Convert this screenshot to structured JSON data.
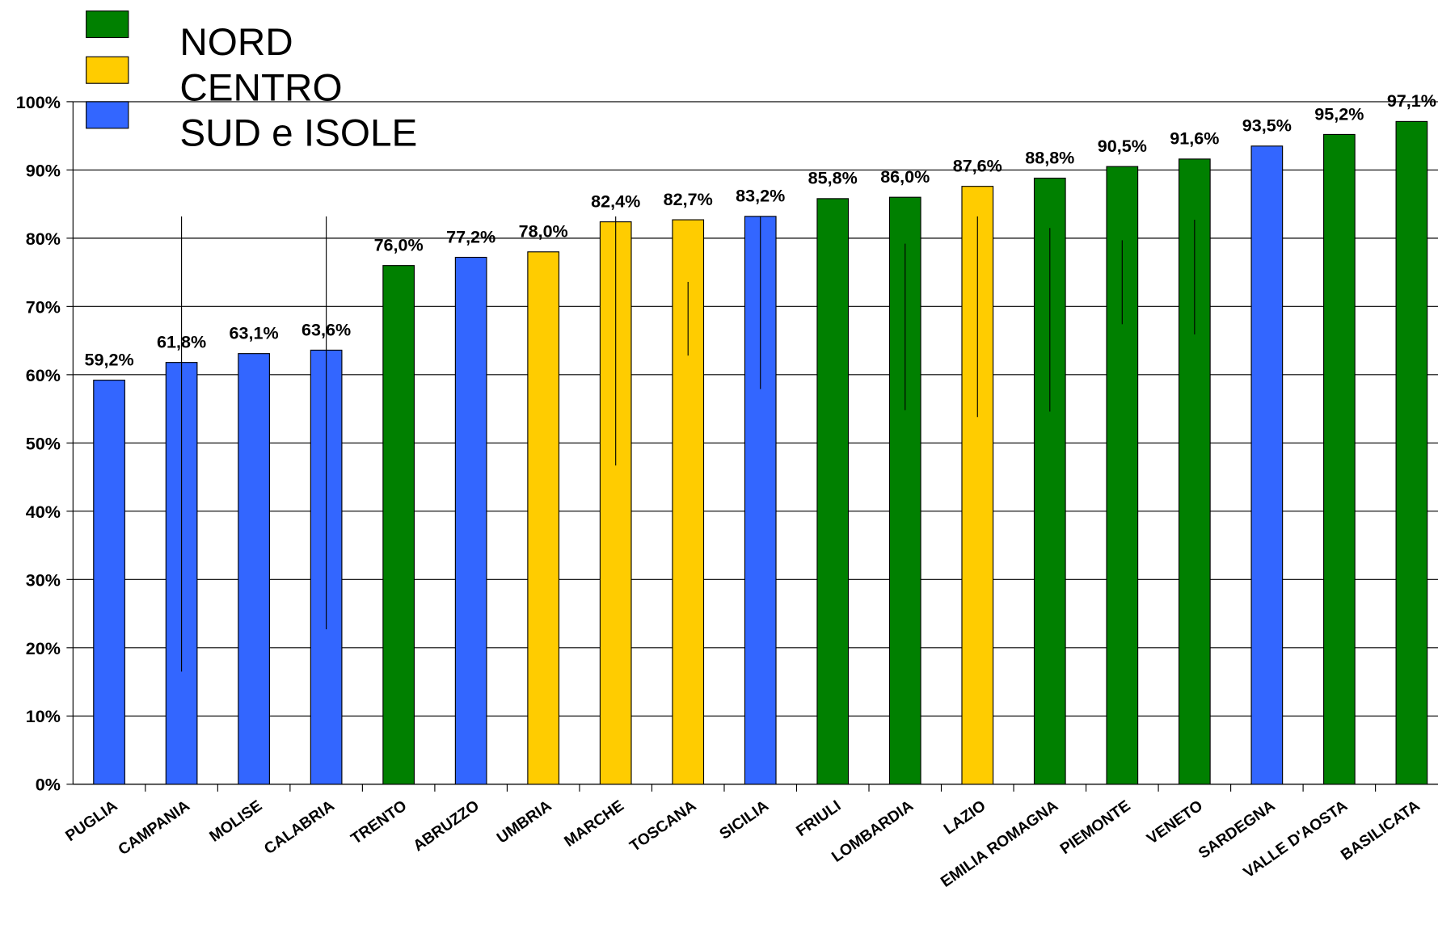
{
  "chart_data": {
    "type": "bar",
    "categories": [
      "PUGLIA",
      "CAMPANIA",
      "MOLISE",
      "CALABRIA",
      "TRENTO",
      "ABRUZZO",
      "UMBRIA",
      "MARCHE",
      "TOSCANA",
      "SICILIA",
      "FRIULI",
      "LOMBARDIA",
      "LAZIO",
      "EMILIA ROMAGNA",
      "PIEMONTE",
      "VENETO",
      "SARDEGNA",
      "VALLE D'AOSTA",
      "BASILICATA"
    ],
    "series": [
      {
        "name": "NORD",
        "color": "#008000",
        "values": [
          null,
          null,
          null,
          null,
          76.0,
          null,
          null,
          null,
          null,
          null,
          85.8,
          86.0,
          null,
          88.8,
          90.5,
          91.6,
          null,
          95.2,
          97.1
        ],
        "value_labels": [
          null,
          null,
          null,
          null,
          "76,0%",
          null,
          null,
          null,
          null,
          null,
          "85,8%",
          "86,0%",
          null,
          "88,8%",
          "90,5%",
          "91,6%",
          null,
          "95,2%",
          "97,1%"
        ]
      },
      {
        "name": "CENTRO",
        "color": "#ffcc00",
        "values": [
          null,
          null,
          null,
          null,
          null,
          null,
          78.0,
          82.4,
          82.7,
          null,
          null,
          null,
          87.6,
          null,
          null,
          null,
          null,
          null,
          null
        ],
        "value_labels": [
          null,
          null,
          null,
          null,
          null,
          null,
          "78,0%",
          "82,4%",
          "82,7%",
          null,
          null,
          null,
          "87,6%",
          null,
          null,
          null,
          null,
          null,
          null
        ]
      },
      {
        "name": "SUD e ISOLE",
        "color": "#3366ff",
        "values": [
          59.2,
          61.8,
          63.1,
          63.6,
          null,
          77.2,
          null,
          null,
          null,
          83.2,
          null,
          null,
          null,
          null,
          null,
          null,
          93.5,
          null,
          null
        ],
        "value_labels": [
          "59,2%",
          "61,8%",
          "63,1%",
          "63,6%",
          null,
          "77,2%",
          null,
          null,
          null,
          "83,2%",
          null,
          null,
          null,
          null,
          null,
          null,
          "93,5%",
          null,
          null
        ]
      }
    ],
    "ranges": [
      null,
      [
        16.5,
        83.2
      ],
      null,
      [
        22.7,
        83.2
      ],
      null,
      null,
      null,
      [
        46.7,
        83.2
      ],
      [
        62.8,
        73.6
      ],
      [
        57.9,
        83.2
      ],
      null,
      [
        54.8,
        79.2
      ],
      [
        53.8,
        83.2
      ],
      [
        54.6,
        81.5
      ],
      [
        67.4,
        79.7
      ],
      [
        65.9,
        82.7
      ],
      null,
      null,
      null
    ],
    "ylim": [
      0,
      100
    ],
    "yticks": [
      {
        "value": 0,
        "label": "0%"
      },
      {
        "value": 10,
        "label": "10%"
      },
      {
        "value": 20,
        "label": "20%"
      },
      {
        "value": 30,
        "label": "30%"
      },
      {
        "value": 40,
        "label": "40%"
      },
      {
        "value": 50,
        "label": "50%"
      },
      {
        "value": 60,
        "label": "60%"
      },
      {
        "value": 70,
        "label": "70%"
      },
      {
        "value": 80,
        "label": "80%"
      },
      {
        "value": 90,
        "label": "90%"
      },
      {
        "value": 100,
        "label": "100%"
      }
    ],
    "grid": true,
    "legend": "top-left"
  }
}
